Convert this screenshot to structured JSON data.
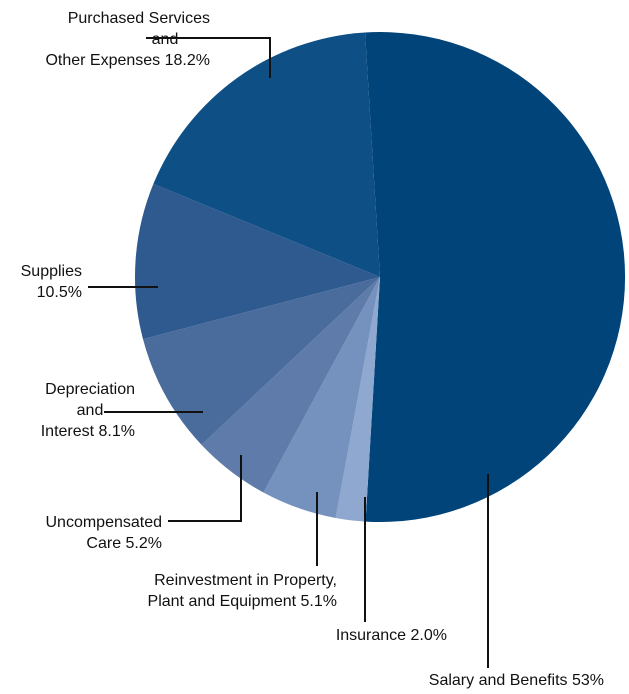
{
  "chart_data": {
    "type": "pie",
    "slices": [
      {
        "label_lines": [
          "Salary and Benefits 53%"
        ],
        "value": 53.0,
        "color": "#004479"
      },
      {
        "label_lines": [
          "Insurance 2.0%"
        ],
        "value": 2.0,
        "color": "#8fa8cf"
      },
      {
        "label_lines": [
          "Reinvestment in Property,",
          "Plant and Equipment 5.1%"
        ],
        "value": 5.1,
        "color": "#7591bd"
      },
      {
        "label_lines": [
          "Uncompensated",
          "Care 5.2%"
        ],
        "value": 5.2,
        "color": "#5e7ba9"
      },
      {
        "label_lines": [
          "Depreciation",
          "and",
          "Interest 8.1%"
        ],
        "value": 8.1,
        "color": "#4a6c9d"
      },
      {
        "label_lines": [
          "Supplies",
          "10.5%"
        ],
        "value": 10.5,
        "color": "#2e5a8f"
      },
      {
        "label_lines": [
          "Purchased Services",
          "and",
          "Other Expenses 18.2%"
        ],
        "value": 18.2,
        "color": "#0e4f85"
      }
    ]
  }
}
